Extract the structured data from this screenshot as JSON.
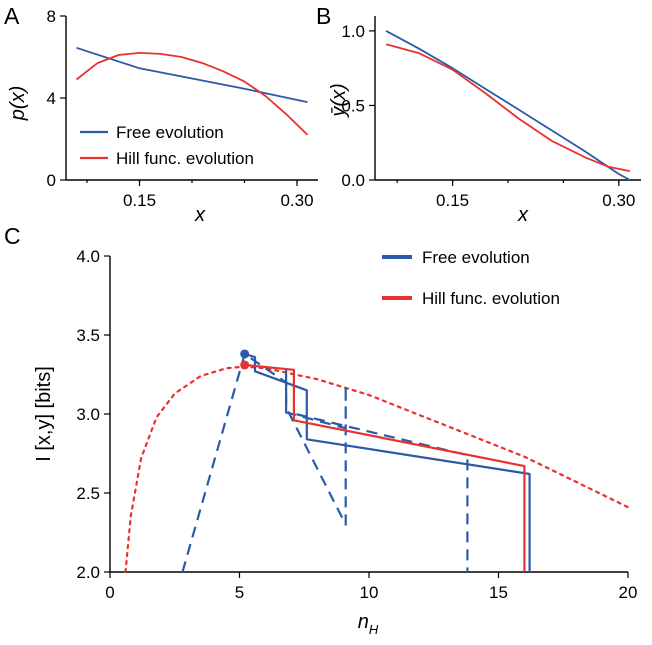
{
  "colors": {
    "free": "#2a5aa8",
    "hill": "#e8322f"
  },
  "chart_data": [
    {
      "panel": "A",
      "type": "line",
      "xlabel": "x",
      "ylabel": "p(x)",
      "xlim": [
        0.08,
        0.32
      ],
      "ylim": [
        0,
        8
      ],
      "xticks": [
        0.15,
        0.3
      ],
      "xtick_labels": [
        "0.15",
        "0.30"
      ],
      "yticks": [
        0,
        4,
        8
      ],
      "ytick_labels": [
        "0",
        "4",
        "8"
      ],
      "legend": "lower-left",
      "series": [
        {
          "name": "Free evolution",
          "color": "free",
          "x": [
            0.09,
            0.15,
            0.2,
            0.25,
            0.31
          ],
          "y": [
            6.45,
            5.45,
            4.95,
            4.45,
            3.8
          ]
        },
        {
          "name": "Hill func. evolution",
          "color": "hill",
          "x": [
            0.09,
            0.11,
            0.13,
            0.15,
            0.17,
            0.19,
            0.21,
            0.23,
            0.25,
            0.27,
            0.29,
            0.31
          ],
          "y": [
            4.9,
            5.7,
            6.1,
            6.2,
            6.15,
            6.0,
            5.7,
            5.3,
            4.8,
            4.1,
            3.2,
            2.2
          ]
        }
      ]
    },
    {
      "panel": "B",
      "type": "line",
      "xlabel": "x",
      "ylabel": "ȳ(x)",
      "xlim": [
        0.08,
        0.32
      ],
      "ylim": [
        0,
        1.1
      ],
      "xticks": [
        0.15,
        0.3
      ],
      "xtick_labels": [
        "0.15",
        "0.30"
      ],
      "yticks": [
        0,
        0.5,
        1.0
      ],
      "ytick_labels": [
        "0.0",
        "0.5",
        "1.0"
      ],
      "series": [
        {
          "name": "Free evolution",
          "color": "free",
          "x": [
            0.09,
            0.12,
            0.15,
            0.18,
            0.21,
            0.24,
            0.27,
            0.3,
            0.31
          ],
          "y": [
            1.0,
            0.88,
            0.75,
            0.61,
            0.47,
            0.33,
            0.19,
            0.04,
            0.0
          ]
        },
        {
          "name": "Hill func. evolution",
          "color": "hill",
          "x": [
            0.09,
            0.12,
            0.15,
            0.18,
            0.21,
            0.24,
            0.27,
            0.29,
            0.31
          ],
          "y": [
            0.91,
            0.85,
            0.74,
            0.58,
            0.41,
            0.26,
            0.15,
            0.09,
            0.06
          ]
        }
      ]
    },
    {
      "panel": "C",
      "type": "line",
      "xlabel": "n_H",
      "ylabel": "I [x,y]  [bits]",
      "xlim": [
        0,
        20
      ],
      "ylim": [
        2.0,
        4.0
      ],
      "xticks": [
        0,
        5,
        10,
        15,
        20
      ],
      "xtick_labels": [
        "0",
        "5",
        "10",
        "15",
        "20"
      ],
      "yticks": [
        2.0,
        2.5,
        3.0,
        3.5,
        4.0
      ],
      "ytick_labels": [
        "2.0",
        "2.5",
        "3.0",
        "3.5",
        "4.0"
      ],
      "legend": "top-right",
      "legend_entries": [
        "Free evolution",
        "Hill func. evolution"
      ],
      "series": [
        {
          "name": "Hill dotted optimum curve",
          "color": "hill",
          "style": "dotted",
          "x": [
            0.6,
            0.8,
            1.2,
            1.8,
            2.5,
            3.5,
            4.5,
            5.2,
            6,
            8,
            10,
            12,
            14,
            16,
            18,
            20
          ],
          "y": [
            2.0,
            2.35,
            2.72,
            2.98,
            3.13,
            3.24,
            3.29,
            3.3,
            3.29,
            3.22,
            3.12,
            2.99,
            2.86,
            2.73,
            2.57,
            2.41
          ]
        },
        {
          "name": "Free dashed trajectory",
          "color": "free",
          "style": "dashed",
          "x": [
            2.8,
            5.2,
            5.2,
            6.8,
            6.8,
            9.1,
            9.1,
            9.1,
            6.9,
            6.9,
            13.8,
            13.8
          ],
          "y": [
            2.0,
            3.38,
            3.38,
            3.2,
            3.01,
            2.91,
            3.18,
            2.3,
            3.01,
            3.01,
            2.74,
            2.0
          ]
        },
        {
          "name": "Free solid staircase",
          "color": "free",
          "style": "solid",
          "x": [
            5.2,
            5.6,
            5.6,
            7.6,
            7.6,
            16.2,
            16.2
          ],
          "y": [
            3.38,
            3.36,
            3.27,
            3.15,
            2.84,
            2.62,
            2.0
          ]
        },
        {
          "name": "Hill solid staircase",
          "color": "hill",
          "style": "solid",
          "x": [
            5.2,
            7.1,
            7.1,
            16.0,
            16.0
          ],
          "y": [
            3.31,
            3.28,
            2.96,
            2.67,
            2.0
          ]
        },
        {
          "name": "Free solid connector",
          "color": "free",
          "style": "solid",
          "x": [
            6.8,
            6.8
          ],
          "y": [
            3.28,
            3.01
          ]
        }
      ],
      "markers": [
        {
          "color": "free",
          "x": 5.2,
          "y": 3.38
        },
        {
          "color": "hill",
          "x": 5.2,
          "y": 3.31
        }
      ]
    }
  ]
}
